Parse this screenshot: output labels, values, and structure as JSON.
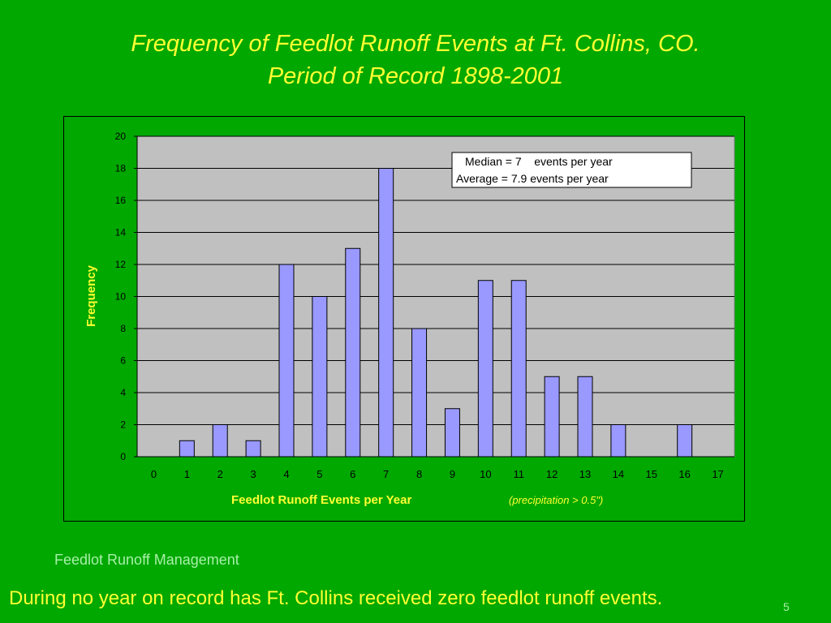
{
  "slide": {
    "title_line1": "Frequency of Feedlot Runoff Events at Ft. Collins, CO.",
    "title_line2": "Period of Record 1898-2001",
    "footer": "Feedlot Runoff Management",
    "footnote": "During no year on record has Ft. Collins received zero feedlot runoff events.",
    "page_number": "5"
  },
  "colors": {
    "background": "#00A800",
    "plot_area": "#C0C0C0",
    "bar_fill": "#9999FF",
    "title_text": "#FFFF33",
    "footer_text": "#A8F0A8"
  },
  "chart_data": {
    "type": "bar",
    "categories": [
      "0",
      "1",
      "2",
      "3",
      "4",
      "5",
      "6",
      "7",
      "8",
      "9",
      "10",
      "11",
      "12",
      "13",
      "14",
      "15",
      "16",
      "17"
    ],
    "values": [
      0,
      1,
      2,
      1,
      12,
      10,
      13,
      18,
      8,
      3,
      11,
      11,
      5,
      5,
      2,
      0,
      2,
      0
    ],
    "xlabel": "Feedlot Runoff Events per Year",
    "xlabel_note": "(precipitation > 0.5\")",
    "ylabel": "Frequency",
    "ylim": [
      0,
      20
    ],
    "yticks": [
      0,
      2,
      4,
      6,
      8,
      10,
      12,
      14,
      16,
      18,
      20
    ],
    "grid": true,
    "annotation": {
      "line1": "Median = 7    events per year",
      "line2": "Average = 7.9 events per year"
    }
  }
}
